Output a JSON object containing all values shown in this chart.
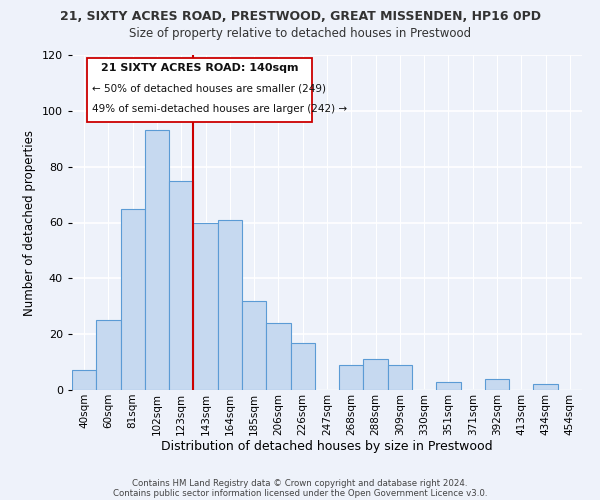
{
  "title1": "21, SIXTY ACRES ROAD, PRESTWOOD, GREAT MISSENDEN, HP16 0PD",
  "title2": "Size of property relative to detached houses in Prestwood",
  "xlabel": "Distribution of detached houses by size in Prestwood",
  "ylabel": "Number of detached properties",
  "bar_labels": [
    "40sqm",
    "60sqm",
    "81sqm",
    "102sqm",
    "123sqm",
    "143sqm",
    "164sqm",
    "185sqm",
    "206sqm",
    "226sqm",
    "247sqm",
    "268sqm",
    "288sqm",
    "309sqm",
    "330sqm",
    "351sqm",
    "371sqm",
    "392sqm",
    "413sqm",
    "434sqm",
    "454sqm"
  ],
  "bar_heights": [
    7,
    25,
    65,
    93,
    75,
    60,
    61,
    32,
    24,
    17,
    0,
    9,
    11,
    9,
    0,
    3,
    0,
    4,
    0,
    2,
    0
  ],
  "bar_color": "#c6d9f0",
  "bar_edge_color": "#5b9bd5",
  "vline_color": "#cc0000",
  "ylim": [
    0,
    120
  ],
  "yticks": [
    0,
    20,
    40,
    60,
    80,
    100,
    120
  ],
  "annotation_title": "21 SIXTY ACRES ROAD: 140sqm",
  "annotation_line1": "← 50% of detached houses are smaller (249)",
  "annotation_line2": "49% of semi-detached houses are larger (242) →",
  "footer1": "Contains HM Land Registry data © Crown copyright and database right 2024.",
  "footer2": "Contains public sector information licensed under the Open Government Licence v3.0.",
  "background_color": "#eef2fa"
}
